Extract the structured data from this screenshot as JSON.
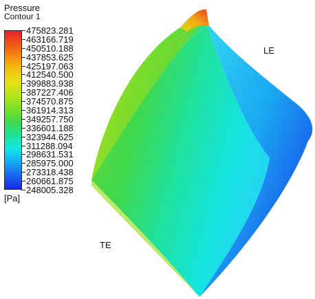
{
  "legend": {
    "title": "Pressure",
    "subtitle": "Contour 1",
    "unit": "[Pa]",
    "levels": [
      "475823.281",
      "463166.719",
      "450510.188",
      "437853.625",
      "425197.063",
      "412540.500",
      "399883.938",
      "387227.406",
      "374570.875",
      "361914.313",
      "349257.750",
      "336601.188",
      "323944.625",
      "311288.094",
      "298631.531",
      "285975.000",
      "273318.438",
      "260661.875",
      "248005.328"
    ],
    "colors": {
      "max": "#e8202a",
      "high": "#f4c010",
      "mid": "#3ed84e",
      "low": "#14e8e0",
      "min": "#1a28e4"
    }
  },
  "labels": {
    "leading_edge": "LE",
    "trailing_edge": "TE"
  }
}
